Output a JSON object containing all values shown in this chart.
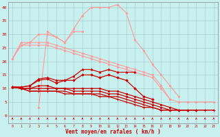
{
  "x": [
    0,
    1,
    2,
    3,
    4,
    5,
    6,
    7,
    8,
    9,
    10,
    11,
    12,
    13,
    14,
    15,
    16,
    17,
    18,
    19,
    20,
    21,
    22,
    23
  ],
  "light_arch": [
    null,
    null,
    null,
    null,
    null,
    null,
    null,
    null,
    null,
    36,
    40,
    40,
    41,
    null,
    null,
    null,
    null,
    null,
    null,
    null,
    null,
    null,
    null,
    null
  ],
  "light_jagged": [
    null,
    null,
    null,
    3,
    31,
    29,
    27,
    31,
    31,
    null,
    null,
    null,
    null,
    null,
    null,
    null,
    null,
    null,
    null,
    null,
    null,
    null,
    null,
    null
  ],
  "light_diag1": [
    21,
    27,
    27,
    27,
    27,
    26,
    25,
    24,
    23,
    22,
    21,
    20,
    19,
    18,
    17,
    16,
    15,
    11,
    6,
    null,
    null,
    null,
    null,
    null
  ],
  "light_diag2": [
    21,
    26,
    26,
    26,
    26,
    25,
    24,
    23,
    22,
    21,
    20,
    19,
    18,
    17,
    16,
    15,
    14,
    10,
    6,
    5,
    5,
    5,
    5,
    5
  ],
  "light_peak": [
    21,
    26,
    27,
    30,
    30,
    29,
    27,
    32,
    37,
    40,
    40,
    40,
    41,
    38,
    28,
    24,
    19,
    15,
    11,
    7,
    null,
    null,
    null,
    null
  ],
  "dark_upper": [
    10.5,
    10.5,
    11,
    13.5,
    14,
    13,
    13,
    14.5,
    17,
    17,
    16,
    17,
    16,
    16,
    16,
    null,
    null,
    null,
    null,
    null,
    null,
    null,
    null,
    null
  ],
  "dark_mid1": [
    10.5,
    10.5,
    11,
    13,
    13.5,
    12,
    13,
    13,
    15,
    15,
    14,
    15,
    14,
    13,
    10,
    7,
    6,
    null,
    null,
    null,
    null,
    null,
    null,
    null
  ],
  "dark_mid2": [
    10.5,
    10,
    10,
    11,
    11,
    10,
    10,
    10,
    10,
    10,
    10,
    9,
    9,
    8,
    7,
    6,
    5,
    4,
    3,
    2,
    2,
    null,
    null,
    null
  ],
  "dark_low1": [
    10.5,
    10,
    10,
    10,
    10,
    10,
    10,
    9,
    9,
    9,
    9,
    8,
    8,
    7,
    6,
    5,
    4,
    3,
    2,
    2,
    2,
    2,
    null,
    null
  ],
  "dark_low2": [
    10.5,
    10,
    9,
    9,
    9,
    9,
    9,
    8,
    8,
    8,
    8,
    7,
    7,
    6,
    5,
    4,
    3,
    2,
    2,
    2,
    2,
    2,
    2,
    2
  ],
  "dark_low3": [
    10.5,
    10,
    9,
    9,
    9,
    9,
    8,
    8,
    8,
    8,
    7,
    7,
    6,
    5,
    4,
    3,
    3,
    2,
    2,
    2,
    2,
    2,
    2,
    2
  ],
  "xlabel": "Vent moyen/en rafales ( km/h )",
  "bg_color": "#c8f0ee",
  "grid_color": "#a0c8c8",
  "light_pink": "#ff9999",
  "dark_red": "#cc0000",
  "arrow_color": "#cc0000"
}
